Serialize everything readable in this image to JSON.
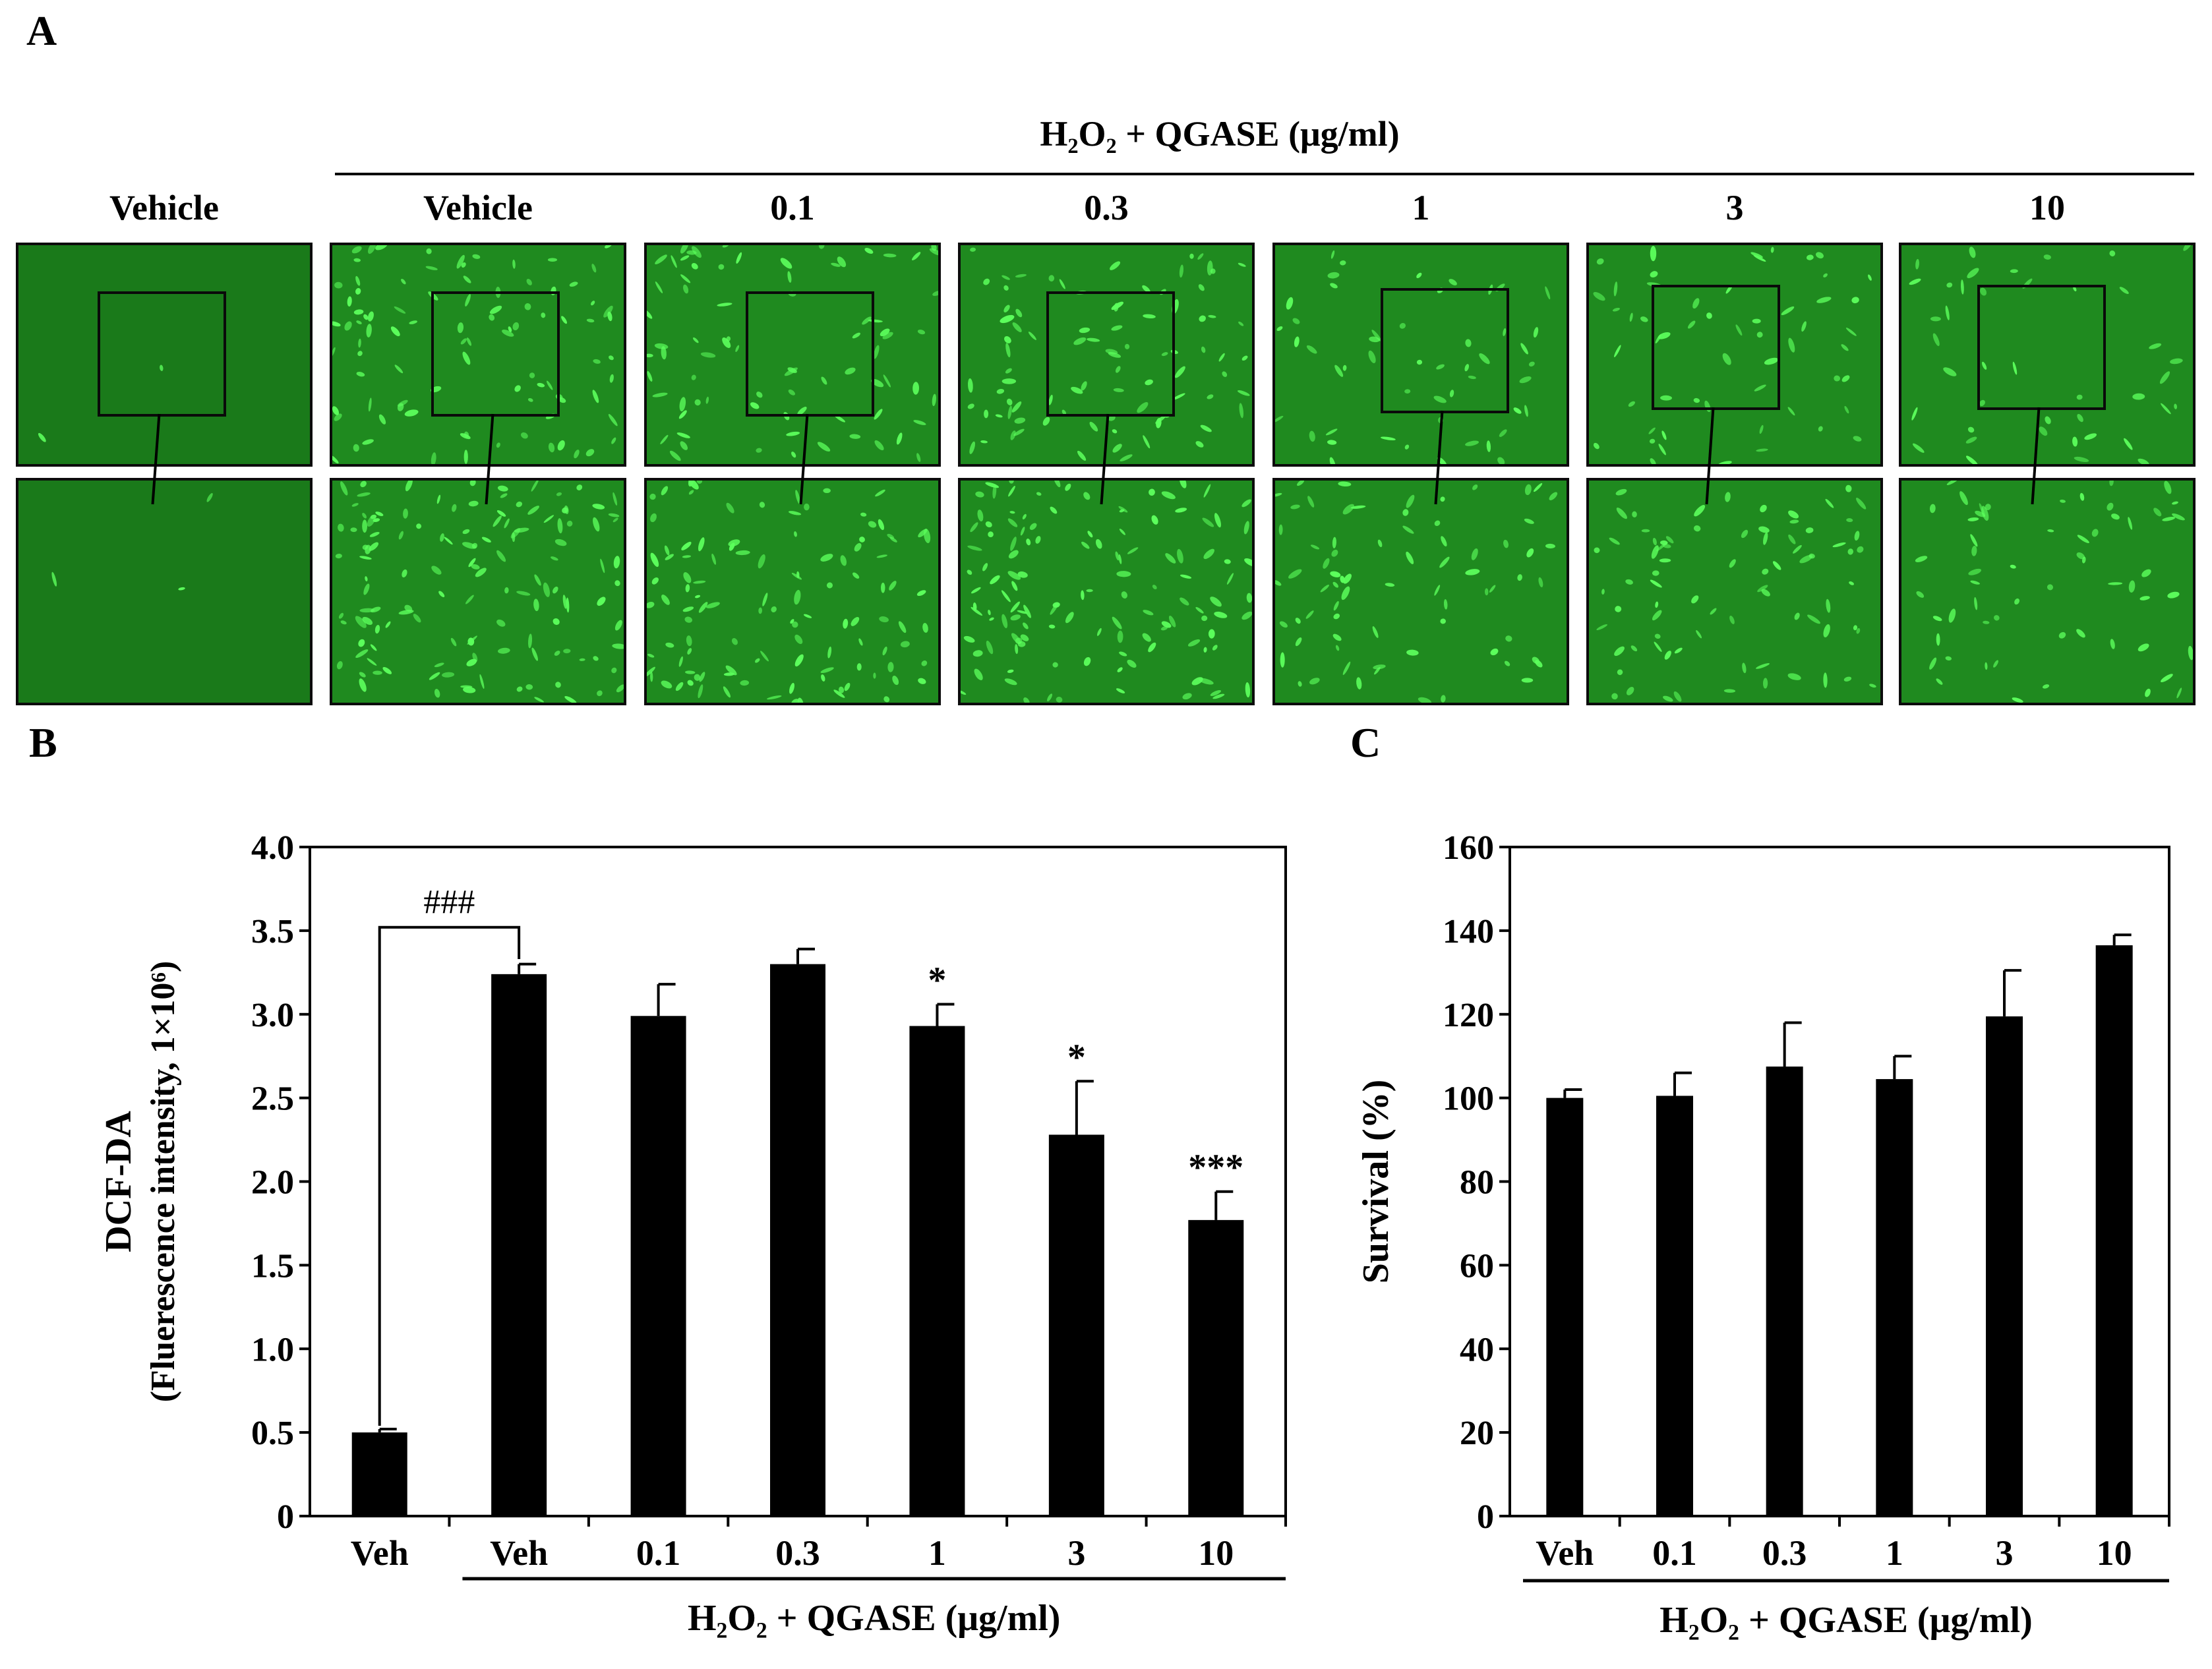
{
  "panel_a": {
    "letter": "A",
    "group_title": "H₂O₂  + QGASE (μg/ml)",
    "columns": [
      {
        "label": "Vehicle",
        "density": 0.02
      },
      {
        "label": "Vehicle",
        "density": 1.0
      },
      {
        "label": "0.1",
        "density": 0.85
      },
      {
        "label": "0.3",
        "density": 0.95
      },
      {
        "label": "1",
        "density": 0.55
      },
      {
        "label": "3",
        "density": 0.6
      },
      {
        "label": "10",
        "density": 0.45
      }
    ],
    "colors": {
      "background": "#1f8a1f",
      "cell": "#5cff5c"
    }
  },
  "chart_data": [
    {
      "panel": "B",
      "type": "bar",
      "ylabel": "DCF-DA",
      "ylabel2": "(Fluerescence intensity, 1×10⁶)",
      "categories": [
        "Veh",
        "Veh",
        "0.1",
        "0.3",
        "1",
        "3",
        "10"
      ],
      "values": [
        0.5,
        3.24,
        2.99,
        3.3,
        2.93,
        2.28,
        1.77
      ],
      "errors": [
        0.02,
        0.06,
        0.19,
        0.09,
        0.13,
        0.32,
        0.17
      ],
      "annotations": [
        "",
        "",
        "",
        "",
        "*",
        "*",
        "***"
      ],
      "bracket_label": "###",
      "ylim": [
        0,
        4.0
      ],
      "yticks": [
        "0",
        "0.5",
        "1.0",
        "1.5",
        "2.0",
        "2.5",
        "3.0",
        "3.5",
        "4.0"
      ],
      "group_label": "H₂O₂ + QGASE (μg/ml)",
      "bar_color": "#000000"
    },
    {
      "panel": "C",
      "type": "bar",
      "ylabel": "Survival (%)",
      "categories": [
        "Veh",
        "0.1",
        "0.3",
        "1",
        "3",
        "10"
      ],
      "values": [
        100,
        100.5,
        107.5,
        104.5,
        119.5,
        136.5
      ],
      "errors": [
        2,
        5.5,
        10.5,
        5.5,
        11,
        2.5
      ],
      "ylim": [
        0,
        160
      ],
      "yticks": [
        "0",
        "20",
        "40",
        "60",
        "80",
        "100",
        "120",
        "140",
        "160"
      ],
      "group_label": "H₂O₂ + QGASE (μg/ml)",
      "bar_color": "#000000"
    }
  ]
}
